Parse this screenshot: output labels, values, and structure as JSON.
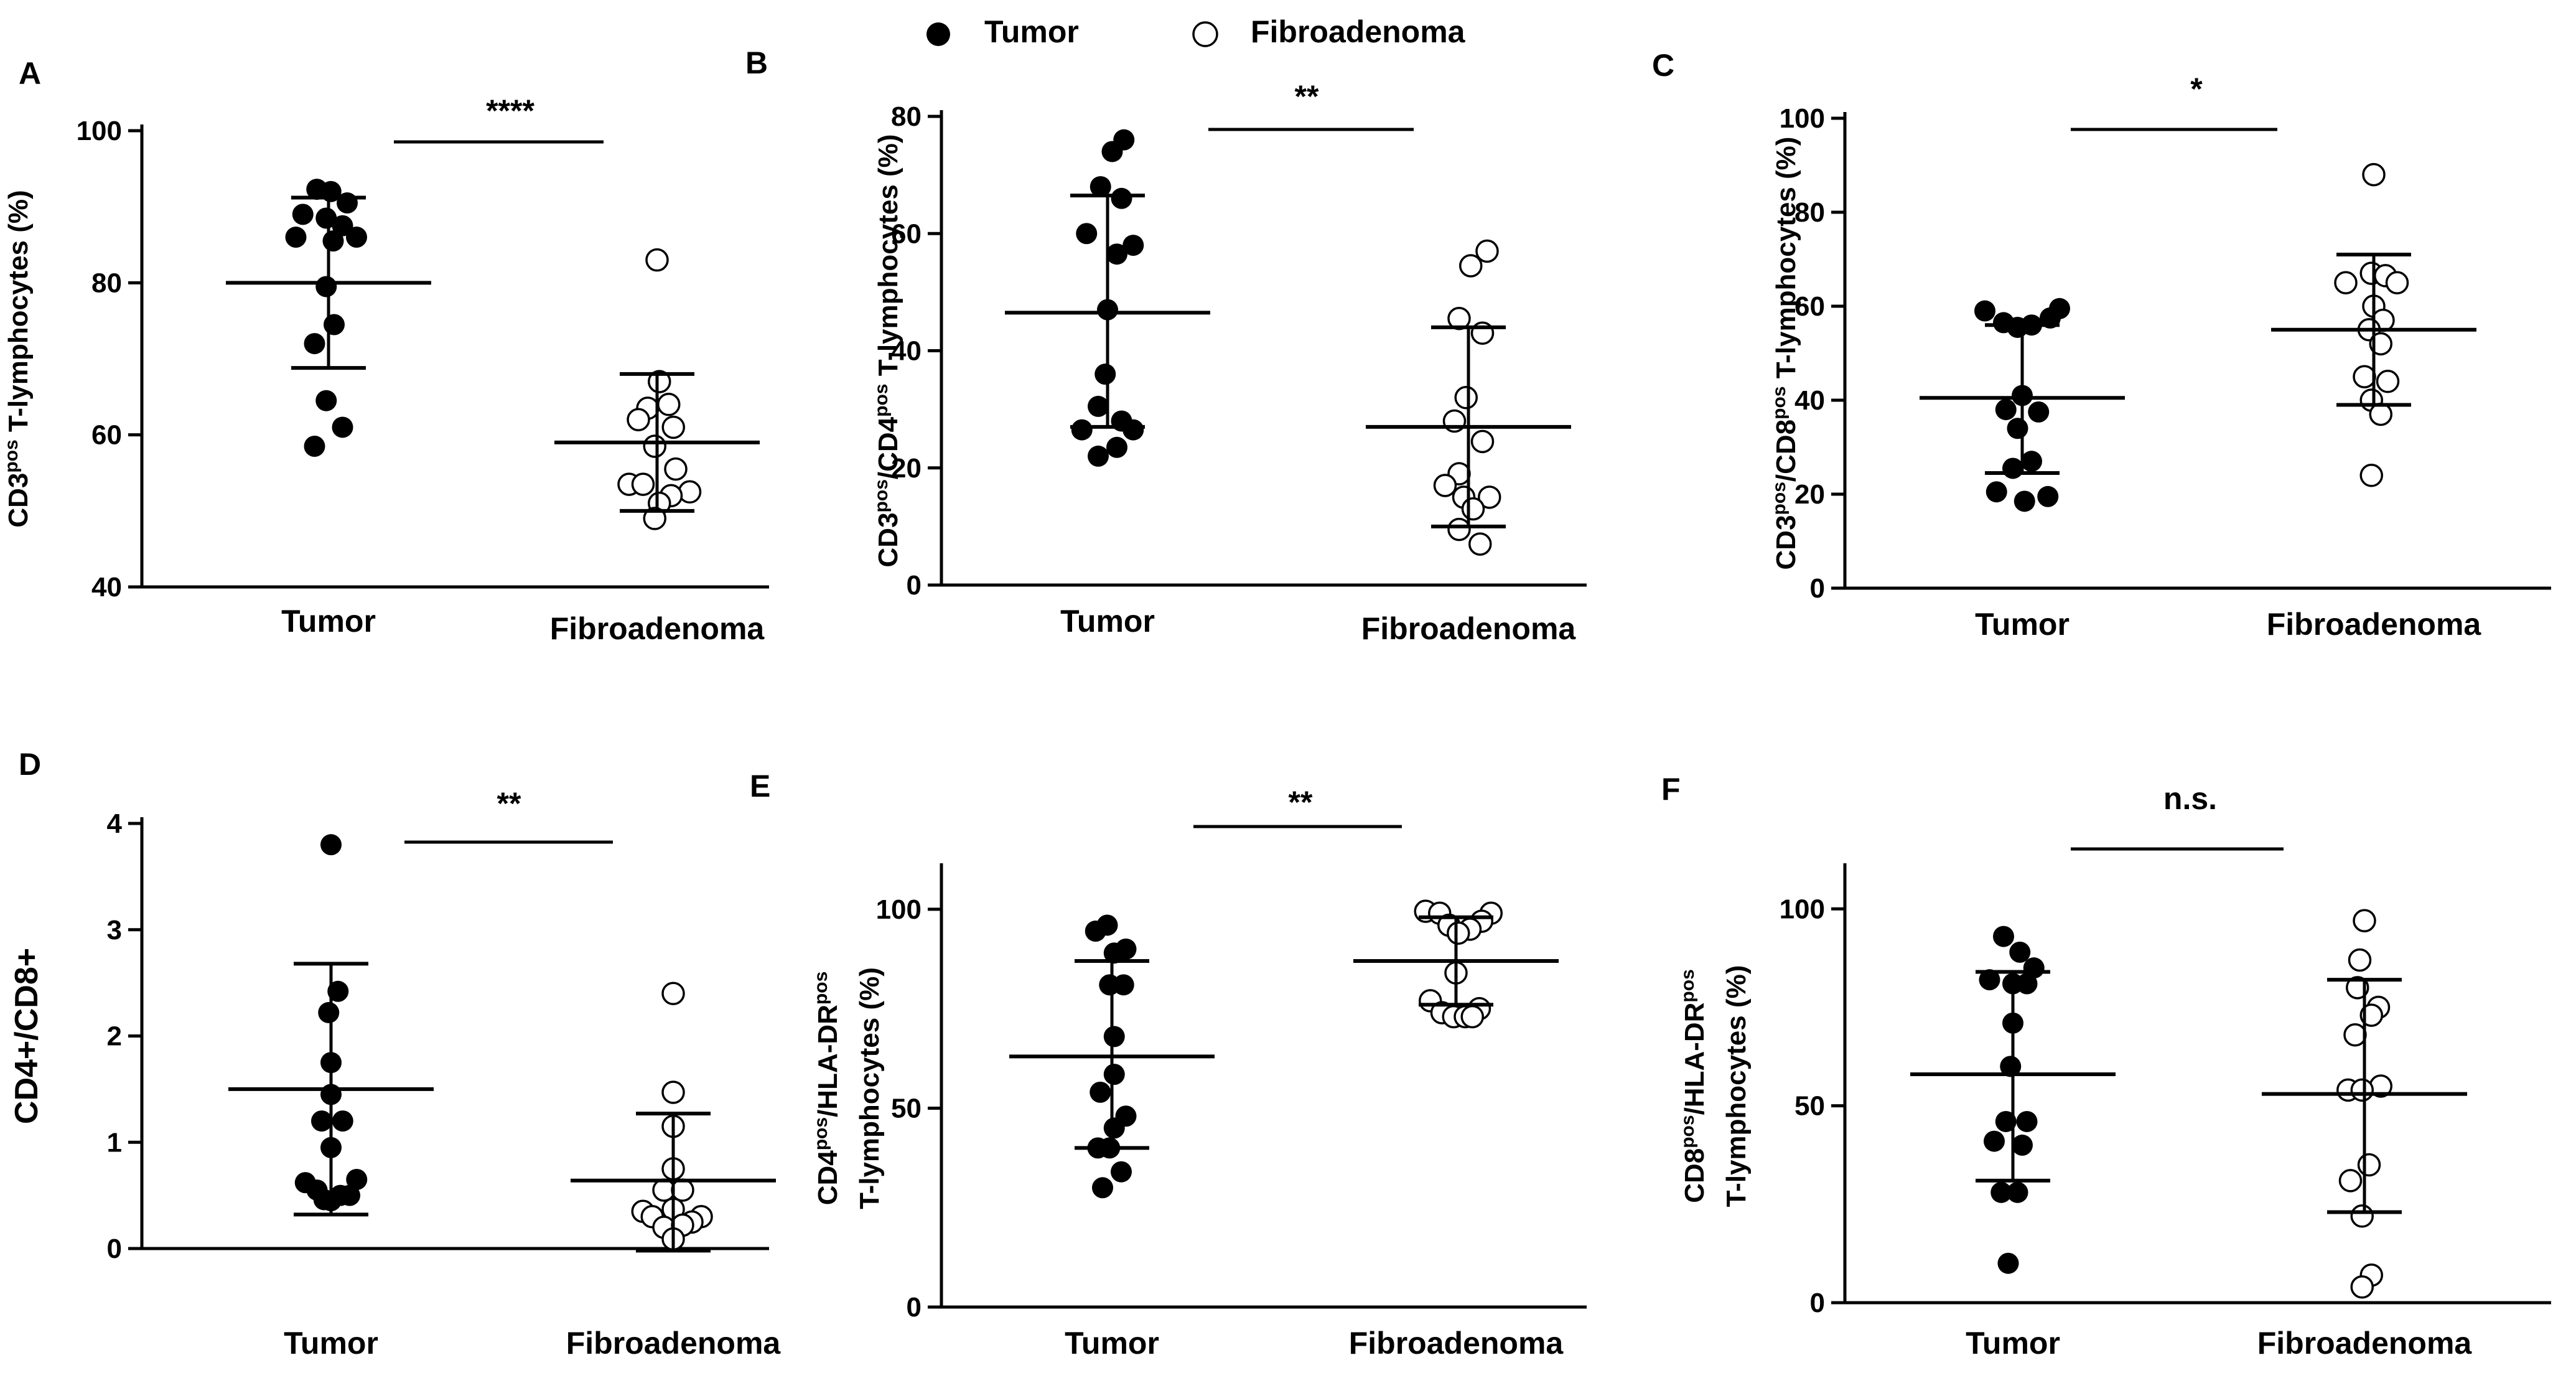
{
  "legend": {
    "tumor_label": "Tumor",
    "fibro_label": "Fibroadenoma",
    "tumor_marker": "filled-circle",
    "fibro_marker": "open-circle"
  },
  "colors": {
    "ink": "#000000",
    "background": "#ffffff"
  },
  "chart_data": [
    {
      "id": "A",
      "type": "scatter",
      "letter": "A",
      "ylabel": {
        "pre": "CD3",
        "sup": "pos",
        "post": " T-lymphocytes (%)"
      },
      "ylabel2": null,
      "ylim": [
        40,
        100
      ],
      "yticks": [
        40,
        60,
        80,
        100
      ],
      "categories": [
        "Tumor",
        "Fibroadenoma"
      ],
      "significance": "****",
      "series": [
        {
          "name": "Tumor",
          "filled": true,
          "mean": 80,
          "sd_low": 68.8,
          "sd_high": 91.2,
          "points": [
            {
              "v": 92.3,
              "j": -0.25
            },
            {
              "v": 92,
              "j": 0.05
            },
            {
              "v": 90.5,
              "j": 0.4
            },
            {
              "v": 89,
              "j": -0.55
            },
            {
              "v": 88.5,
              "j": -0.05
            },
            {
              "v": 87.5,
              "j": 0.3
            },
            {
              "v": 86,
              "j": -0.7
            },
            {
              "v": 86,
              "j": 0.6
            },
            {
              "v": 85.5,
              "j": 0.1
            },
            {
              "v": 79.5,
              "j": -0.05
            },
            {
              "v": 74.5,
              "j": 0.12
            },
            {
              "v": 72,
              "j": -0.3
            },
            {
              "v": 64.5,
              "j": -0.05
            },
            {
              "v": 61,
              "j": 0.3
            },
            {
              "v": 58.5,
              "j": -0.3
            }
          ]
        },
        {
          "name": "Fibroadenoma",
          "filled": false,
          "mean": 59,
          "sd_low": 50,
          "sd_high": 68,
          "points": [
            {
              "v": 83,
              "j": 0
            },
            {
              "v": 67,
              "j": 0.05
            },
            {
              "v": 64,
              "j": 0.25
            },
            {
              "v": 63.5,
              "j": -0.2
            },
            {
              "v": 62,
              "j": -0.4
            },
            {
              "v": 61,
              "j": 0.35
            },
            {
              "v": 58.5,
              "j": -0.05
            },
            {
              "v": 55.5,
              "j": 0.4
            },
            {
              "v": 53.5,
              "j": -0.6
            },
            {
              "v": 53.5,
              "j": -0.3
            },
            {
              "v": 52.5,
              "j": 0.7
            },
            {
              "v": 52,
              "j": 0.3
            },
            {
              "v": 51,
              "j": 0.05
            },
            {
              "v": 49,
              "j": -0.05
            }
          ]
        }
      ]
    },
    {
      "id": "B",
      "type": "scatter",
      "letter": "B",
      "ylabel": {
        "pre": "CD3",
        "sup": "pos",
        "post": "/CD4",
        "sup2": "pos",
        "post2": " T-lymphocytes (%)"
      },
      "ylabel2": null,
      "ylim": [
        0,
        80
      ],
      "yticks": [
        0,
        20,
        40,
        60,
        80
      ],
      "categories": [
        "Tumor",
        "Fibroadenoma"
      ],
      "significance": "**",
      "series": [
        {
          "name": "Tumor",
          "filled": true,
          "mean": 46.5,
          "sd_low": 27,
          "sd_high": 66.5,
          "points": [
            {
              "v": 76,
              "j": 0.35
            },
            {
              "v": 74,
              "j": 0.1
            },
            {
              "v": 68,
              "j": -0.15
            },
            {
              "v": 66,
              "j": 0.3
            },
            {
              "v": 60,
              "j": -0.45
            },
            {
              "v": 58,
              "j": 0.55
            },
            {
              "v": 56.5,
              "j": 0.2
            },
            {
              "v": 47,
              "j": 0
            },
            {
              "v": 36,
              "j": -0.05
            },
            {
              "v": 30.5,
              "j": -0.2
            },
            {
              "v": 28,
              "j": 0.3
            },
            {
              "v": 26.5,
              "j": -0.55
            },
            {
              "v": 26.5,
              "j": 0.55
            },
            {
              "v": 23.5,
              "j": 0.2
            },
            {
              "v": 22,
              "j": -0.2
            }
          ]
        },
        {
          "name": "Fibroadenoma",
          "filled": false,
          "mean": 27,
          "sd_low": 10,
          "sd_high": 44,
          "points": [
            {
              "v": 57,
              "j": 0.4
            },
            {
              "v": 54.5,
              "j": 0.05
            },
            {
              "v": 45.5,
              "j": -0.2
            },
            {
              "v": 43,
              "j": 0.3
            },
            {
              "v": 32,
              "j": -0.05
            },
            {
              "v": 28,
              "j": -0.3
            },
            {
              "v": 24.5,
              "j": 0.3
            },
            {
              "v": 19,
              "j": -0.2
            },
            {
              "v": 17,
              "j": -0.5
            },
            {
              "v": 15,
              "j": -0.1
            },
            {
              "v": 15,
              "j": 0.45
            },
            {
              "v": 13,
              "j": 0.1
            },
            {
              "v": 9.5,
              "j": -0.2
            },
            {
              "v": 7,
              "j": 0.25
            }
          ]
        }
      ]
    },
    {
      "id": "C",
      "type": "scatter",
      "letter": "C",
      "ylabel": {
        "pre": "CD3",
        "sup": "pos",
        "post": "/CD8",
        "sup2": "pos",
        "post2": " T-lymphocytes (%)"
      },
      "ylabel2": null,
      "ylim": [
        0,
        100
      ],
      "yticks": [
        0,
        20,
        40,
        60,
        80,
        100
      ],
      "categories": [
        "Tumor",
        "Fibroadenoma"
      ],
      "significance": "*",
      "series": [
        {
          "name": "Tumor",
          "filled": true,
          "mean": 40.5,
          "sd_low": 24.5,
          "sd_high": 56,
          "points": [
            {
              "v": 59,
              "j": -0.8
            },
            {
              "v": 59.5,
              "j": 0.8
            },
            {
              "v": 57.5,
              "j": 0.6
            },
            {
              "v": 56.5,
              "j": -0.4
            },
            {
              "v": 56,
              "j": 0.2
            },
            {
              "v": 55.5,
              "j": -0.1
            },
            {
              "v": 41,
              "j": 0
            },
            {
              "v": 38,
              "j": -0.35
            },
            {
              "v": 37.5,
              "j": 0.35
            },
            {
              "v": 34,
              "j": -0.1
            },
            {
              "v": 27,
              "j": 0.2
            },
            {
              "v": 25.5,
              "j": -0.2
            },
            {
              "v": 20.5,
              "j": -0.55
            },
            {
              "v": 19.5,
              "j": 0.55
            },
            {
              "v": 18.5,
              "j": 0.05
            }
          ]
        },
        {
          "name": "Fibroadenoma",
          "filled": false,
          "mean": 55,
          "sd_low": 39,
          "sd_high": 71,
          "points": [
            {
              "v": 88,
              "j": 0
            },
            {
              "v": 67,
              "j": -0.05
            },
            {
              "v": 66.5,
              "j": 0.25
            },
            {
              "v": 65,
              "j": -0.6
            },
            {
              "v": 65,
              "j": 0.5
            },
            {
              "v": 60,
              "j": 0
            },
            {
              "v": 57,
              "j": 0.2
            },
            {
              "v": 55,
              "j": -0.1
            },
            {
              "v": 52,
              "j": 0.15
            },
            {
              "v": 45,
              "j": -0.2
            },
            {
              "v": 44,
              "j": 0.3
            },
            {
              "v": 40,
              "j": -0.05
            },
            {
              "v": 37,
              "j": 0.15
            },
            {
              "v": 24,
              "j": -0.05
            }
          ]
        }
      ]
    },
    {
      "id": "D",
      "type": "scatter",
      "letter": "D",
      "ylabel": {
        "pre": "CD4+/CD8+"
      },
      "ylabel2": null,
      "ylim": [
        0,
        4
      ],
      "yticks": [
        0,
        1,
        2,
        3,
        4
      ],
      "categories": [
        "Tumor",
        "Fibroadenoma"
      ],
      "significance": "**",
      "series": [
        {
          "name": "Tumor",
          "filled": true,
          "mean": 1.5,
          "sd_low": 0.32,
          "sd_high": 2.68,
          "points": [
            {
              "v": 3.8,
              "j": 0
            },
            {
              "v": 2.42,
              "j": 0.15
            },
            {
              "v": 2.22,
              "j": -0.05
            },
            {
              "v": 1.75,
              "j": 0
            },
            {
              "v": 1.45,
              "j": 0
            },
            {
              "v": 1.2,
              "j": -0.2
            },
            {
              "v": 1.2,
              "j": 0.25
            },
            {
              "v": 0.95,
              "j": 0
            },
            {
              "v": 0.65,
              "j": 0.55
            },
            {
              "v": 0.62,
              "j": -0.55
            },
            {
              "v": 0.55,
              "j": -0.3
            },
            {
              "v": 0.5,
              "j": 0.2
            },
            {
              "v": 0.5,
              "j": 0.4
            },
            {
              "v": 0.46,
              "j": -0.15
            },
            {
              "v": 0.45,
              "j": 0
            }
          ]
        },
        {
          "name": "Fibroadenoma",
          "filled": false,
          "mean": 0.64,
          "sd_low": -0.02,
          "sd_high": 1.27,
          "points": [
            {
              "v": 2.4,
              "j": 0
            },
            {
              "v": 1.47,
              "j": 0
            },
            {
              "v": 1.15,
              "j": 0
            },
            {
              "v": 0.75,
              "j": 0
            },
            {
              "v": 0.55,
              "j": -0.2
            },
            {
              "v": 0.55,
              "j": 0.2
            },
            {
              "v": 0.37,
              "j": 0
            },
            {
              "v": 0.35,
              "j": -0.65
            },
            {
              "v": 0.3,
              "j": 0.6
            },
            {
              "v": 0.3,
              "j": -0.45
            },
            {
              "v": 0.25,
              "j": 0.4
            },
            {
              "v": 0.2,
              "j": -0.2
            },
            {
              "v": 0.22,
              "j": 0.2
            },
            {
              "v": 0.09,
              "j": 0
            }
          ]
        }
      ]
    },
    {
      "id": "E",
      "type": "scatter",
      "letter": "E",
      "ylabel": {
        "pre": "CD4",
        "sup": "pos",
        "post": "/HLA-DR",
        "sup2": "pos"
      },
      "ylabel2": {
        "pre": "T-lymphocytes (%)"
      },
      "ylim": [
        0,
        110
      ],
      "yticks": [
        0,
        50,
        100
      ],
      "categories": [
        "Tumor",
        "Fibroadenoma"
      ],
      "significance": "**",
      "series": [
        {
          "name": "Tumor",
          "filled": true,
          "mean": 63,
          "sd_low": 40,
          "sd_high": 87,
          "points": [
            {
              "v": 96,
              "j": -0.1
            },
            {
              "v": 94.5,
              "j": -0.35
            },
            {
              "v": 90,
              "j": 0.3
            },
            {
              "v": 89,
              "j": 0.05
            },
            {
              "v": 81,
              "j": -0.05
            },
            {
              "v": 81,
              "j": 0.25
            },
            {
              "v": 68,
              "j": 0.05
            },
            {
              "v": 58.5,
              "j": 0.05
            },
            {
              "v": 54,
              "j": -0.25
            },
            {
              "v": 48,
              "j": 0.3
            },
            {
              "v": 45,
              "j": 0.05
            },
            {
              "v": 40,
              "j": -0.3
            },
            {
              "v": 40,
              "j": -0.05
            },
            {
              "v": 34,
              "j": 0.2
            },
            {
              "v": 30,
              "j": -0.2
            }
          ]
        },
        {
          "name": "Fibroadenoma",
          "filled": false,
          "mean": 87,
          "sd_low": 76,
          "sd_high": 98,
          "points": [
            {
              "v": 99.5,
              "j": -0.65
            },
            {
              "v": 99,
              "j": -0.35
            },
            {
              "v": 99,
              "j": 0.75
            },
            {
              "v": 97,
              "j": 0.55
            },
            {
              "v": 96,
              "j": -0.15
            },
            {
              "v": 95,
              "j": 0.3
            },
            {
              "v": 94,
              "j": 0.05
            },
            {
              "v": 84,
              "j": 0
            },
            {
              "v": 77,
              "j": -0.55
            },
            {
              "v": 75,
              "j": 0.5
            },
            {
              "v": 74,
              "j": -0.3
            },
            {
              "v": 73,
              "j": -0.05
            },
            {
              "v": 73,
              "j": 0.2
            },
            {
              "v": 73,
              "j": 0.35
            }
          ]
        }
      ]
    },
    {
      "id": "F",
      "type": "scatter",
      "letter": "F",
      "ylabel": {
        "pre": "CD8",
        "sup": "pos",
        "post": "/HLA-DR",
        "sup2": "pos"
      },
      "ylabel2": {
        "pre": "T-lymphocytes (%)"
      },
      "ylim": [
        0,
        110
      ],
      "yticks": [
        0,
        50,
        100
      ],
      "categories": [
        "Tumor",
        "Fibroadenoma"
      ],
      "significance": "n.s.",
      "series": [
        {
          "name": "Tumor",
          "filled": true,
          "mean": 58,
          "sd_low": 31,
          "sd_high": 84,
          "points": [
            {
              "v": 93,
              "j": -0.2
            },
            {
              "v": 89,
              "j": 0.15
            },
            {
              "v": 85,
              "j": 0.45
            },
            {
              "v": 82,
              "j": -0.5
            },
            {
              "v": 81,
              "j": 0
            },
            {
              "v": 81,
              "j": 0.3
            },
            {
              "v": 71,
              "j": 0
            },
            {
              "v": 60,
              "j": -0.05
            },
            {
              "v": 46,
              "j": -0.15
            },
            {
              "v": 46,
              "j": 0.3
            },
            {
              "v": 41,
              "j": -0.4
            },
            {
              "v": 40,
              "j": 0.2
            },
            {
              "v": 28,
              "j": -0.25
            },
            {
              "v": 28,
              "j": 0.1
            },
            {
              "v": 10,
              "j": -0.1
            }
          ]
        },
        {
          "name": "Fibroadenoma",
          "filled": false,
          "mean": 53,
          "sd_low": 23,
          "sd_high": 82,
          "points": [
            {
              "v": 97,
              "j": 0
            },
            {
              "v": 87,
              "j": -0.1
            },
            {
              "v": 80,
              "j": -0.15
            },
            {
              "v": 75,
              "j": 0.3
            },
            {
              "v": 73,
              "j": 0.15
            },
            {
              "v": 68,
              "j": -0.2
            },
            {
              "v": 55,
              "j": 0.35
            },
            {
              "v": 54,
              "j": -0.35
            },
            {
              "v": 54,
              "j": -0.05
            },
            {
              "v": 35,
              "j": 0.1
            },
            {
              "v": 31,
              "j": -0.3
            },
            {
              "v": 22,
              "j": -0.05
            },
            {
              "v": 7,
              "j": 0.15
            },
            {
              "v": 4,
              "j": -0.05
            }
          ]
        }
      ]
    }
  ]
}
